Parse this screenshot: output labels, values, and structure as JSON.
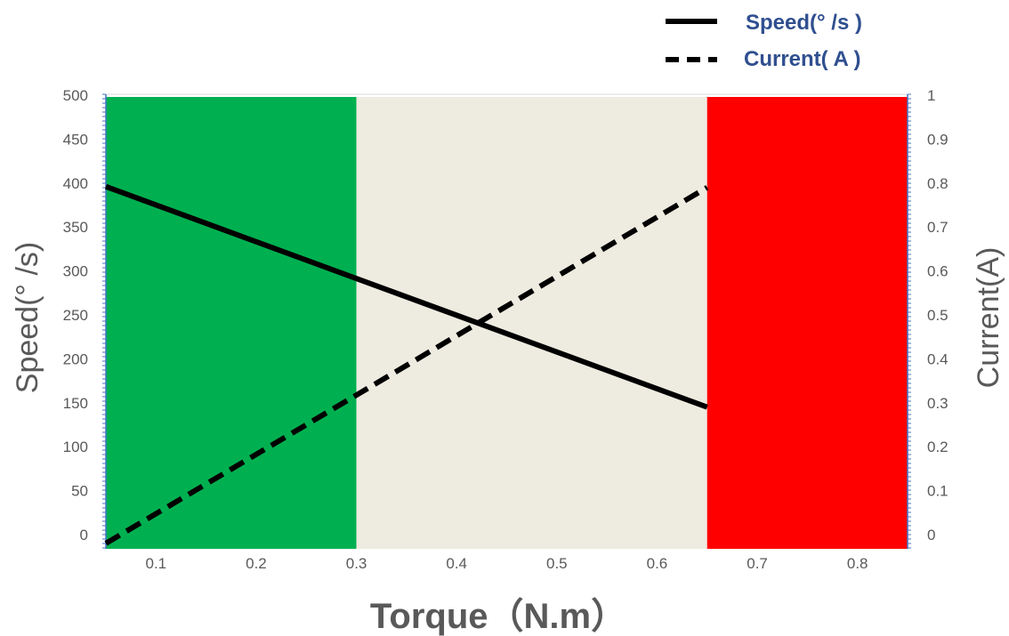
{
  "chart_data": {
    "type": "line",
    "title": "",
    "xlabel": "Torque（N.m）",
    "ylabel": "Speed(°  /s)",
    "y2label": "Current(A)",
    "xlim": [
      0.05,
      0.85
    ],
    "ylim": [
      0,
      500
    ],
    "y2lim": [
      0,
      1
    ],
    "x_ticks": [
      0.1,
      0.2,
      0.3,
      0.4,
      0.5,
      0.6,
      0.7,
      0.8
    ],
    "y_ticks": [
      0,
      50,
      100,
      150,
      200,
      250,
      300,
      350,
      400,
      450,
      500
    ],
    "y2_ticks": [
      0,
      0.1,
      0.2,
      0.3,
      0.4,
      0.5,
      0.6,
      0.7,
      0.8,
      0.9,
      1
    ],
    "grid": false,
    "legend_position": "top-right",
    "regions": [
      {
        "x_start": 0.05,
        "x_end": 0.3,
        "color": "#00b050"
      },
      {
        "x_start": 0.3,
        "x_end": 0.65,
        "color": "#eeebe0"
      },
      {
        "x_start": 0.65,
        "x_end": 0.85,
        "color": "#ff0000"
      }
    ],
    "series": [
      {
        "name": "Speed(°  /s  )",
        "axis": "left",
        "style": "solid",
        "color": "#000000",
        "x": [
          0.05,
          0.65
        ],
        "values": [
          396,
          145
        ]
      },
      {
        "name": "Current(  A   )",
        "axis": "right",
        "style": "dashed",
        "color": "#000000",
        "x": [
          0.05,
          0.65
        ],
        "values": [
          -0.02,
          0.79
        ]
      }
    ]
  }
}
